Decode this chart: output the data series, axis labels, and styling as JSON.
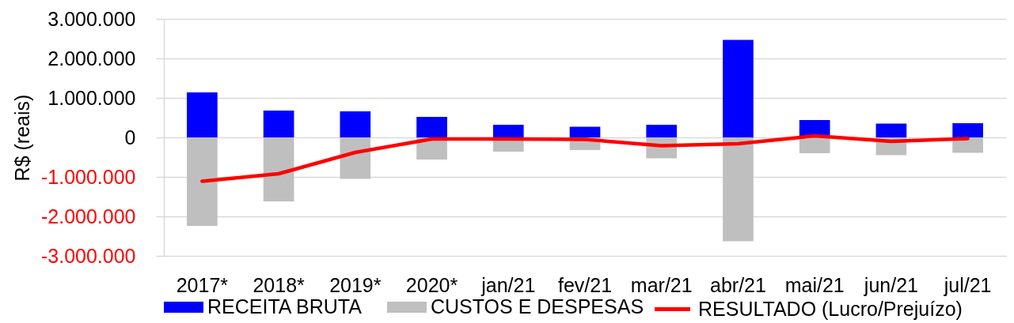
{
  "chart_data": {
    "type": "bar",
    "ylabel": "R$ (reais)",
    "categories": [
      "2017*",
      "2018*",
      "2019*",
      "2020*",
      "jan/21",
      "fev/21",
      "mar/21",
      "abr/21",
      "mai/21",
      "jun/21",
      "jul/21"
    ],
    "series": [
      {
        "name": "RECEITA BRUTA",
        "color": "#0000ff",
        "values": [
          1140000,
          680000,
          660000,
          520000,
          320000,
          270000,
          320000,
          2470000,
          440000,
          350000,
          360000
        ]
      },
      {
        "name": "CUSTOS E DESPESAS",
        "color": "#bfbfbf",
        "values": [
          -2240000,
          -1620000,
          -1050000,
          -560000,
          -360000,
          -320000,
          -530000,
          -2630000,
          -400000,
          -450000,
          -390000
        ]
      },
      {
        "name": "RESULTADO (Lucro/Prejuízo)",
        "type": "line",
        "color": "#ff0000",
        "values": [
          -1110000,
          -920000,
          -380000,
          -40000,
          -40000,
          -50000,
          -210000,
          -160000,
          40000,
          -100000,
          -30000
        ]
      }
    ],
    "stacked": true,
    "ylim": [
      -3000000,
      3000000
    ],
    "yticks": [
      {
        "value": -3000000,
        "label": "-3.000.000"
      },
      {
        "value": -2000000,
        "label": "-2.000.000"
      },
      {
        "value": -1000000,
        "label": "-1.000.000"
      },
      0,
      {
        "value": 1000000,
        "label": "1.000.000"
      },
      {
        "value": 2000000,
        "label": "2.000.000"
      },
      {
        "value": 3000000,
        "label": "3.000.000"
      }
    ],
    "grid": "y",
    "legend": "bottom"
  }
}
